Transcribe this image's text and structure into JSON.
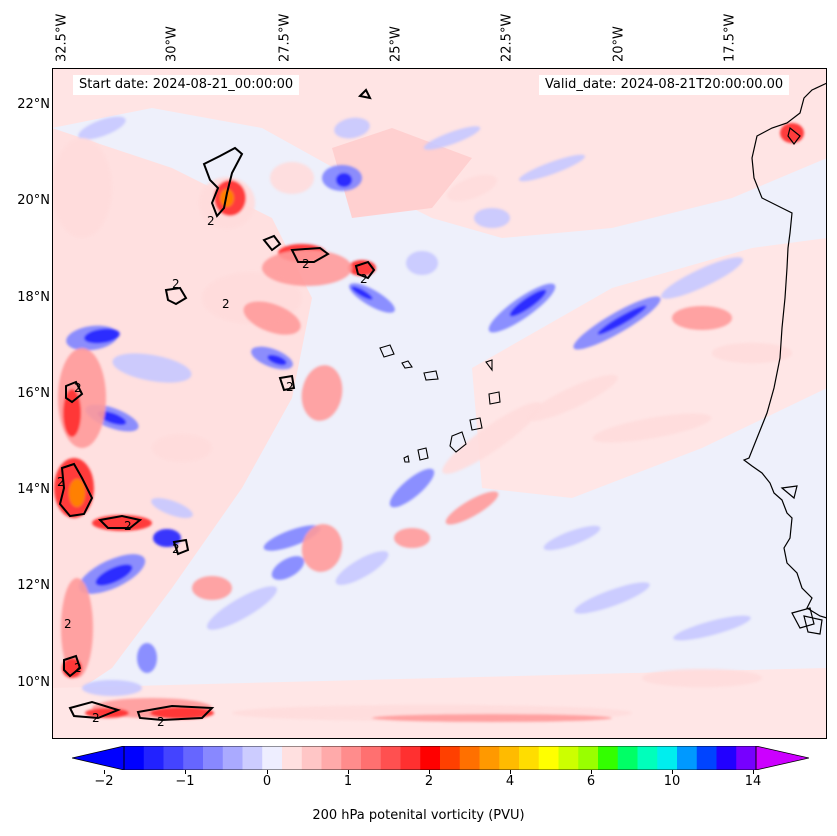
{
  "header": {
    "start_date": "Start date: 2024-08-21_00:00:00",
    "valid_date": "Valid_date: 2024-08-21T20:00:00.00"
  },
  "axes": {
    "longitude_labels": [
      "32.5°W",
      "30°W",
      "27.5°W",
      "25°W",
      "22.5°W",
      "20°W",
      "17.5°W"
    ],
    "latitude_labels": [
      "22°N",
      "20°N",
      "18°N",
      "16°N",
      "14°N",
      "12°N",
      "10°N"
    ]
  },
  "contour_label": "2",
  "colorbar": {
    "label": "200 hPa potenital vorticity (PVU)",
    "tick_labels": [
      "−2",
      "−1",
      "0",
      "1",
      "2",
      "4",
      "6",
      "10",
      "14"
    ],
    "colors": [
      "#0000ff",
      "#2222ff",
      "#4444ff",
      "#6666ff",
      "#8888ff",
      "#aaaaff",
      "#ccccff",
      "#eeeeff",
      "#ffe0e0",
      "#ffc6c6",
      "#ffaaaa",
      "#ff8c8c",
      "#ff7070",
      "#ff5050",
      "#ff3030",
      "#ff0000",
      "#ff4000",
      "#ff7000",
      "#ff9900",
      "#ffbb00",
      "#ffdd00",
      "#ffff00",
      "#ccff00",
      "#99ff00",
      "#33ff00",
      "#00ff66",
      "#00ffbb",
      "#00eeee",
      "#0099ff",
      "#0044ff",
      "#2200ff",
      "#7700ff"
    ],
    "under_color": "#0000ff",
    "over_color": "#cc00ff"
  },
  "map_colors": {
    "background": "#eef0fb",
    "light_red": "#ffdcdc",
    "mid_red": "#ff9a9a",
    "strong_red": "#ff2a2a",
    "orange": "#ff8800",
    "light_blue": "#c6c8ff",
    "mid_blue": "#7f84ff",
    "strong_blue": "#2424ff",
    "coastline": "#000000",
    "pv2_contour": "#000000"
  }
}
